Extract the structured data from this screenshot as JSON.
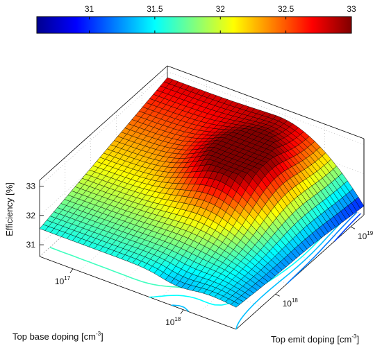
{
  "chart_data": {
    "type": "surface3d",
    "title": "",
    "colorbar": {
      "position": "top",
      "colormap": "jet",
      "range": [
        30.6,
        33.0
      ],
      "ticks": [
        "31",
        "31.5",
        "32",
        "32.5",
        "33"
      ],
      "tick_values": [
        31,
        31.5,
        32,
        32.5,
        33
      ]
    },
    "axes": {
      "x": {
        "label": "Top base doping [cm",
        "label_exp": "-3",
        "label_tail": "]",
        "scale": "log",
        "ticks": [
          {
            "base": "10",
            "exp": "17"
          },
          {
            "base": "10",
            "exp": "18"
          }
        ],
        "tick_values": [
          1e+17,
          1e+18
        ],
        "range": [
          5e+16,
          3e+18
        ]
      },
      "y": {
        "label": "Top emit doping [cm",
        "label_exp": "-3",
        "label_tail": "]",
        "scale": "log",
        "ticks": [
          {
            "base": "10",
            "exp": "18"
          },
          {
            "base": "10",
            "exp": "19"
          }
        ],
        "tick_values": [
          1e+18,
          1e+19
        ],
        "range": [
          3e+17,
          1.5e+19
        ]
      },
      "z": {
        "label": "Efficiency [%]",
        "ticks": [
          "31",
          "32",
          "33"
        ],
        "tick_values": [
          31,
          32,
          33
        ],
        "range": [
          30.6,
          33.2
        ]
      }
    },
    "grid": true,
    "contours_projected_on_floor": true,
    "surface_description_points": [
      {
        "x": 5e+16,
        "y": 3e+17,
        "z": 31.6
      },
      {
        "x": 5e+16,
        "y": 1.5e+19,
        "z": 32.7
      },
      {
        "x": 3e+18,
        "y": 3e+17,
        "z": 31.0
      },
      {
        "x": 3e+18,
        "y": 1.5e+19,
        "z": 31.0
      },
      {
        "x": 1e+18,
        "y": 4e+18,
        "z": 33.0
      }
    ]
  }
}
